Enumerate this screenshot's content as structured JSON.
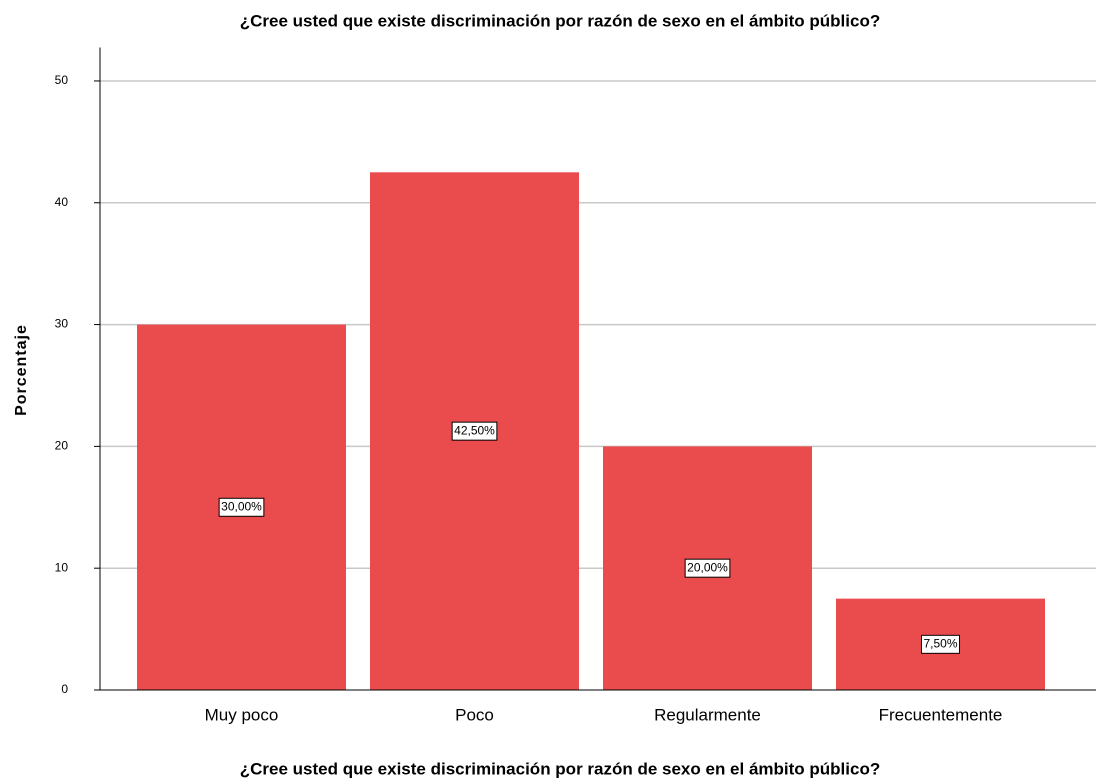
{
  "chart_data": {
    "type": "bar",
    "title": "¿Cree usted que existe discriminación por razón de sexo en el ámbito público?",
    "xlabel": "¿Cree usted que existe discriminación por razón de sexo en el ámbito público?",
    "ylabel": "Porcentaje",
    "categories": [
      "Muy poco",
      "Poco",
      "Regularmente",
      "Frecuentemente"
    ],
    "values": [
      30,
      42.5,
      20,
      7.5
    ],
    "value_labels": [
      "30,00%",
      "42,50%",
      "20,00%",
      "7,50%"
    ],
    "color": "#ea4b4d",
    "ylim": [
      0,
      52.5
    ],
    "yticks": [
      0,
      10,
      20,
      30,
      40,
      50
    ],
    "grid": true
  }
}
